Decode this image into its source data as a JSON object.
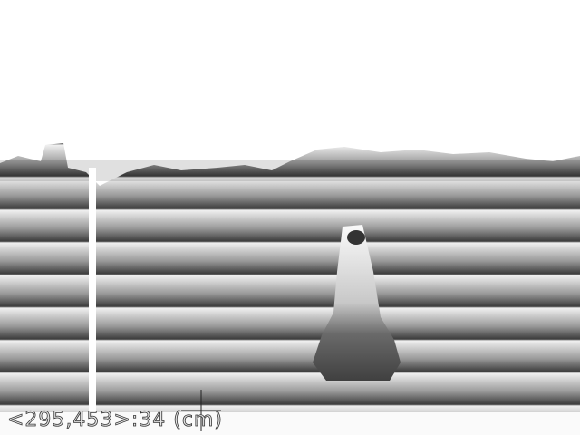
{
  "overlay": {
    "readout": "<295,453>:34 (cm)"
  }
}
